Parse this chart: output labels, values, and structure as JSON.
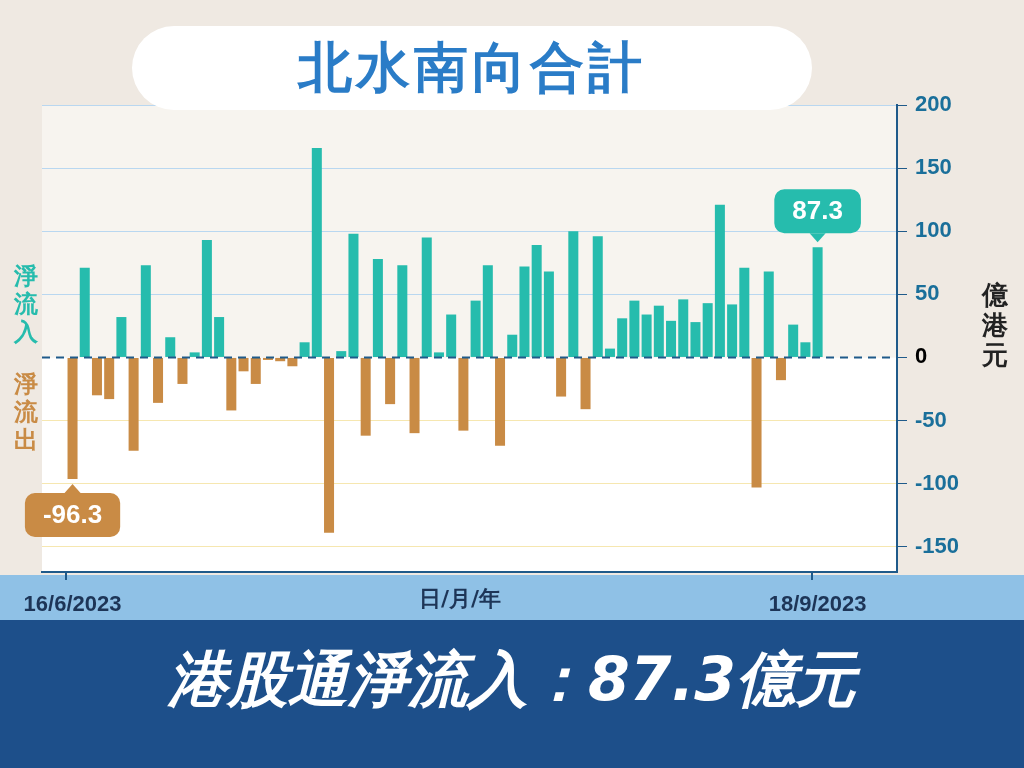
{
  "chart_data": {
    "type": "bar",
    "title": "北水南向合計",
    "xlabel": "日/月/年",
    "ylabel": "億港元",
    "annotations": [
      "淨流入",
      "淨流出",
      "港股通淨流入：87.3億元"
    ],
    "categories": [
      null,
      null,
      "16/6/2023",
      null,
      null,
      null,
      null,
      null,
      null,
      null,
      null,
      null,
      null,
      null,
      null,
      null,
      null,
      null,
      null,
      null,
      null,
      null,
      null,
      null,
      null,
      null,
      null,
      null,
      null,
      null,
      null,
      null,
      null,
      null,
      null,
      null,
      null,
      null,
      null,
      null,
      null,
      null,
      null,
      null,
      null,
      null,
      null,
      null,
      null,
      null,
      null,
      null,
      null,
      null,
      null,
      null,
      null,
      null,
      null,
      null,
      null,
      null,
      null,
      "18/9/2023",
      null,
      null,
      null,
      null,
      null,
      null
    ],
    "values": [
      null,
      null,
      -96.3,
      71,
      -30,
      -33,
      32,
      -74,
      73,
      -36,
      16,
      -21,
      4,
      93,
      32,
      -42,
      -11,
      -21,
      -2,
      -3,
      -7,
      12,
      166,
      -139,
      5,
      98,
      -62,
      78,
      -37,
      73,
      -60,
      95,
      4,
      34,
      -58,
      45,
      73,
      -70,
      18,
      72,
      89,
      68,
      -31,
      100,
      -41,
      96,
      7,
      31,
      45,
      34,
      41,
      29,
      46,
      28,
      43,
      121,
      42,
      71,
      -103,
      68,
      -18,
      26,
      12,
      87.3,
      null,
      null,
      null,
      null,
      null,
      null
    ],
    "colors": [
      "#26bcad",
      "#26bcad",
      "#c98b45",
      "#26bcad",
      "#c98b45",
      "#c98b45",
      "#26bcad",
      "#c98b45",
      "#26bcad",
      "#c98b45",
      "#26bcad",
      "#c98b45",
      "#26bcad",
      "#26bcad",
      "#26bcad",
      "#c98b45",
      "#c98b45",
      "#c98b45",
      "#c98b45",
      "#c98b45",
      "#c98b45",
      "#26bcad",
      "#26bcad",
      "#c98b45",
      "#26bcad",
      "#26bcad",
      "#c98b45",
      "#26bcad",
      "#c98b45",
      "#26bcad",
      "#c98b45",
      "#26bcad",
      "#26bcad",
      "#26bcad",
      "#c98b45",
      "#26bcad",
      "#26bcad",
      "#c98b45",
      "#26bcad",
      "#26bcad",
      "#26bcad",
      "#26bcad",
      "#c98b45",
      "#26bcad",
      "#c98b45",
      "#26bcad",
      "#26bcad",
      "#26bcad",
      "#26bcad",
      "#26bcad",
      "#26bcad",
      "#26bcad",
      "#26bcad",
      "#26bcad",
      "#26bcad",
      "#26bcad",
      "#26bcad",
      "#26bcad",
      "#c98b45",
      "#26bcad",
      "#c98b45",
      "#26bcad",
      "#26bcad",
      "#26bcad",
      "#26bcad",
      "#26bcad",
      "#26bcad",
      "#26bcad",
      "#26bcad",
      "#26bcad"
    ],
    "value_labels": [
      null,
      null,
      "-96.3",
      null,
      null,
      null,
      null,
      null,
      null,
      null,
      null,
      null,
      null,
      null,
      null,
      null,
      null,
      null,
      null,
      null,
      null,
      null,
      null,
      null,
      null,
      null,
      null,
      null,
      null,
      null,
      null,
      null,
      null,
      null,
      null,
      null,
      null,
      null,
      null,
      null,
      null,
      null,
      null,
      null,
      null,
      null,
      null,
      null,
      null,
      null,
      null,
      null,
      null,
      null,
      null,
      null,
      null,
      null,
      null,
      null,
      null,
      null,
      null,
      "87.3",
      null,
      null,
      null,
      null,
      null,
      null
    ],
    "ref_lines": [
      {
        "axis": "y",
        "value": 0,
        "color": "#1f5a8a",
        "line_style": "dashed"
      }
    ],
    "ylim": [
      -170,
      200
    ],
    "yticks": [
      -150,
      -100,
      -50,
      0,
      50,
      100,
      150,
      200
    ],
    "grid": "y",
    "legend": false
  }
}
